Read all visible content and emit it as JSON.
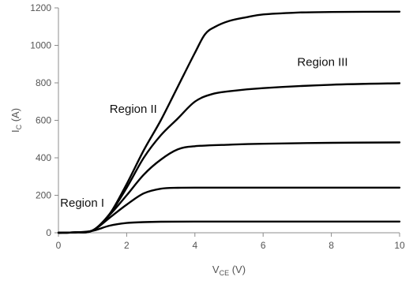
{
  "chart_data": {
    "type": "line",
    "title": "",
    "xlabel": {
      "main": "V",
      "sub": "CE",
      "unit": " (V)"
    },
    "ylabel": {
      "main": "I",
      "sub": "C",
      "unit": " (A)"
    },
    "xlim": [
      0,
      10
    ],
    "ylim": [
      0,
      1200
    ],
    "xticks": [
      0,
      2,
      4,
      6,
      8,
      10
    ],
    "yticks": [
      0,
      200,
      400,
      600,
      800,
      1000,
      1200
    ],
    "grid": false,
    "line_color": "#000000",
    "annotations": [
      {
        "text": "Region I",
        "x": 0.05,
        "y": 140
      },
      {
        "text": "Region II",
        "x": 1.5,
        "y": 640
      },
      {
        "text": "Region III",
        "x": 7.0,
        "y": 890
      }
    ],
    "series": [
      {
        "x": [
          0,
          0.5,
          1.0,
          1.5,
          2.0,
          2.5,
          3.0,
          4.0,
          6.0,
          8.0,
          10.0
        ],
        "y": [
          0,
          2,
          10,
          38,
          52,
          57,
          59,
          60,
          60,
          60,
          60
        ]
      },
      {
        "x": [
          0,
          0.5,
          1.0,
          1.5,
          2.0,
          2.5,
          3.0,
          3.5,
          4.0,
          5.0,
          6.0,
          8.0,
          10.0
        ],
        "y": [
          0,
          2,
          12,
          80,
          150,
          210,
          235,
          240,
          241,
          241,
          241,
          241,
          241
        ]
      },
      {
        "x": [
          0,
          0.5,
          1.0,
          1.5,
          2.0,
          2.5,
          3.0,
          3.5,
          4.0,
          5.0,
          6.0,
          8.0,
          10.0
        ],
        "y": [
          0,
          2,
          12,
          95,
          200,
          310,
          390,
          445,
          462,
          470,
          475,
          480,
          482
        ]
      },
      {
        "x": [
          0,
          0.5,
          1.0,
          1.5,
          2.0,
          2.5,
          3.0,
          3.5,
          4.0,
          4.5,
          5.0,
          6.0,
          8.0,
          10.0
        ],
        "y": [
          0,
          2,
          12,
          100,
          240,
          400,
          520,
          610,
          700,
          740,
          755,
          772,
          790,
          798
        ]
      },
      {
        "x": [
          0,
          0.5,
          1.0,
          1.5,
          2.0,
          2.5,
          3.0,
          3.5,
          4.0,
          4.3,
          4.6,
          5.0,
          5.5,
          6.0,
          7.0,
          8.0,
          10.0
        ],
        "y": [
          0,
          2,
          12,
          100,
          260,
          440,
          600,
          780,
          960,
          1060,
          1100,
          1130,
          1150,
          1165,
          1175,
          1178,
          1180
        ]
      }
    ]
  }
}
